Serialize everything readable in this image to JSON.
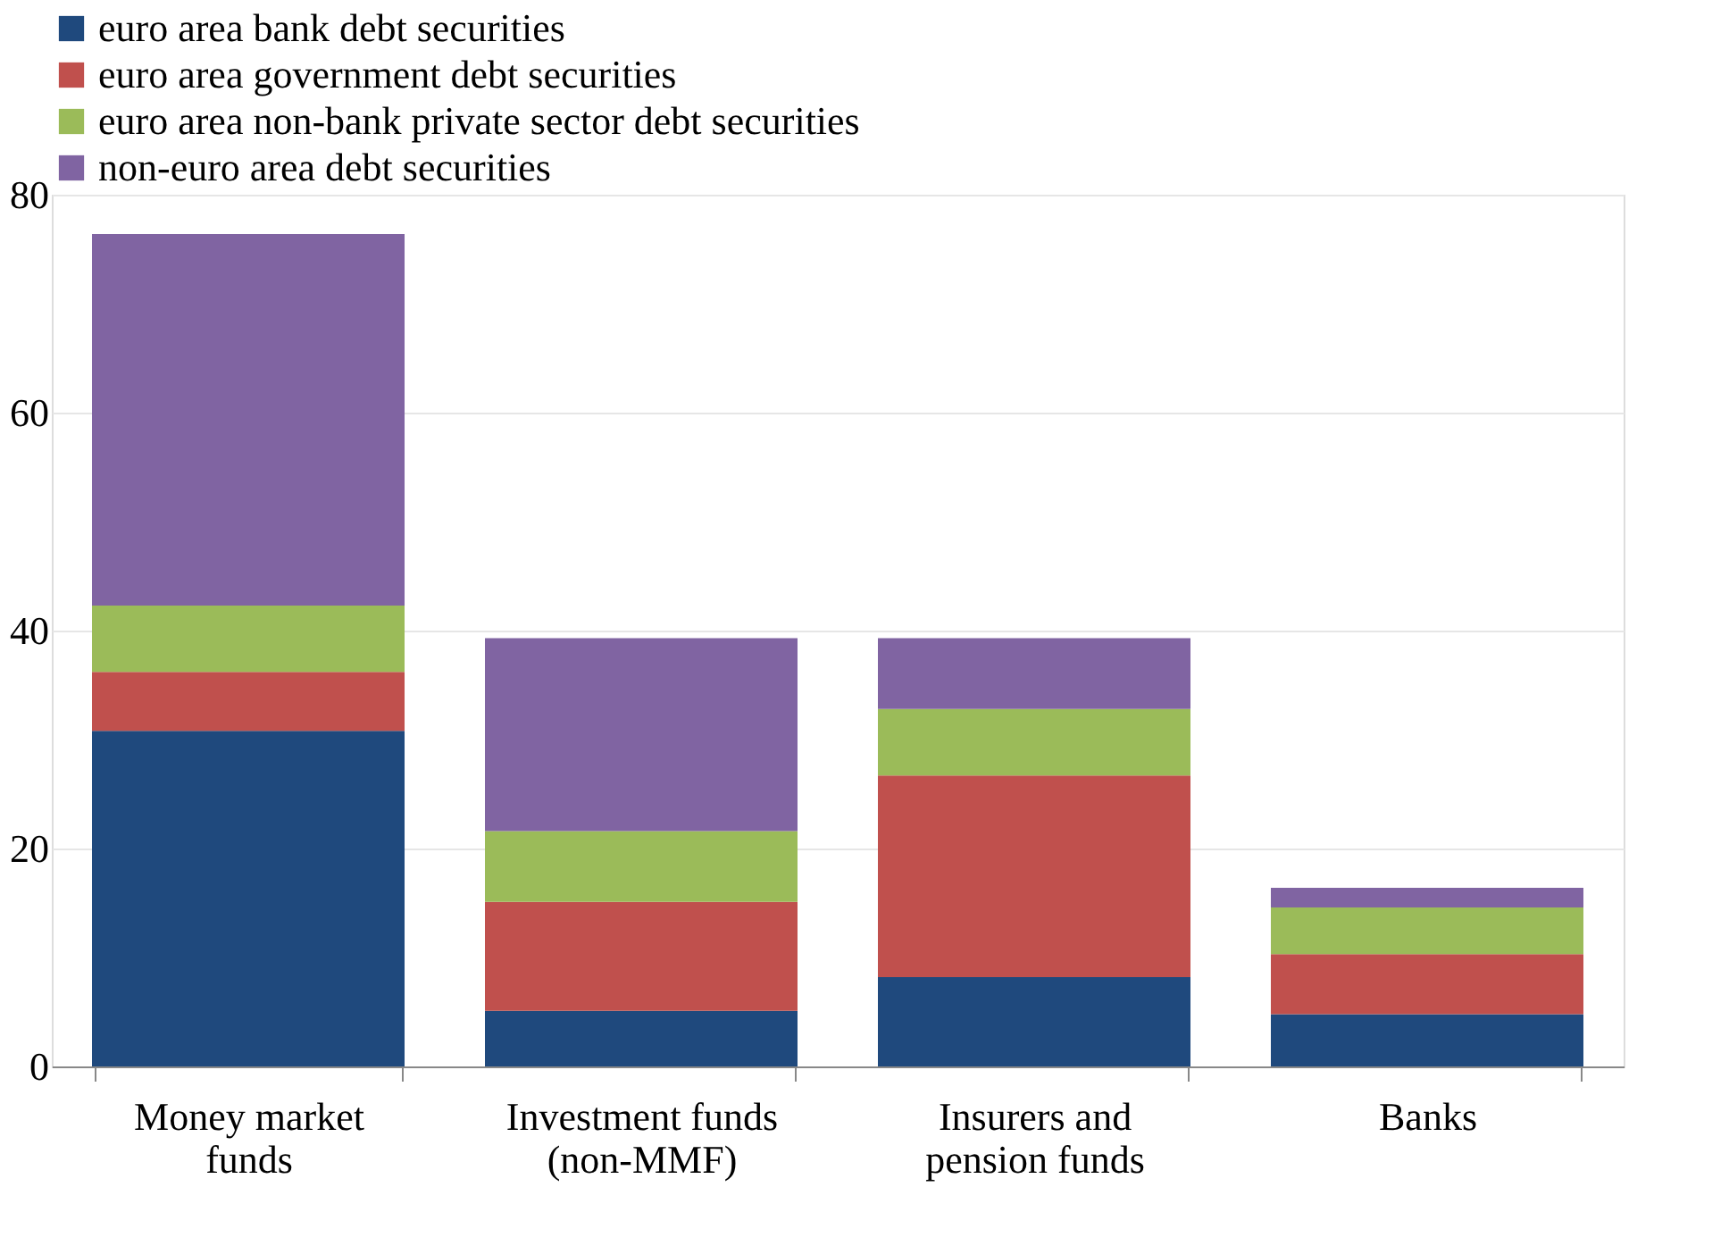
{
  "chart_data": {
    "type": "bar",
    "stacked": true,
    "categories": [
      "Money market\nfunds",
      "Investment funds\n(non-MMF)",
      "Insurers and\npension funds",
      "Banks"
    ],
    "series": [
      {
        "name": "euro area bank debt securities",
        "color": "#1f497d",
        "values": [
          30.8,
          5.1,
          8.2,
          4.8
        ]
      },
      {
        "name": "euro area government debt securities",
        "color": "#c0504d",
        "values": [
          5.4,
          10.0,
          18.5,
          5.5
        ]
      },
      {
        "name": "euro area non-bank private sector debt securities",
        "color": "#9bbb59",
        "values": [
          6.1,
          6.5,
          6.1,
          4.3
        ]
      },
      {
        "name": "non-euro area debt securities",
        "color": "#8064a2",
        "values": [
          34.1,
          17.7,
          6.5,
          1.8
        ]
      }
    ],
    "ylim": [
      0,
      80
    ],
    "yticks": [
      0,
      20,
      40,
      60,
      80
    ],
    "grid": "y",
    "legend": "top left"
  }
}
